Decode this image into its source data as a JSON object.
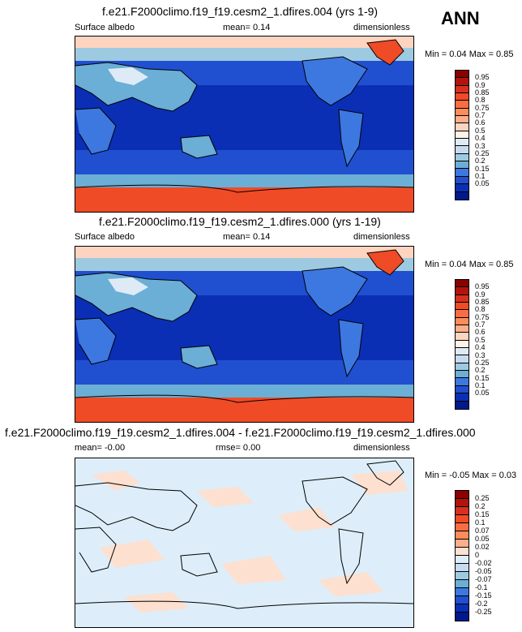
{
  "season": "ANN",
  "panels": [
    {
      "title": "f.e21.F2000climo.f19_f19.cesm2_1.dfires.004 (yrs 1-9)",
      "left_label": "Surface albedo",
      "center_label": "mean=  0.14",
      "right_label": "dimensionless",
      "minmax": "Min =  0.04 Max =  0.85",
      "colorbar": {
        "labels": [
          "0.95",
          "0.9",
          "0.85",
          "0.8",
          "0.75",
          "0.7",
          "0.6",
          "0.5",
          "0.4",
          "0.3",
          "0.25",
          "0.2",
          "0.15",
          "0.1",
          "0.05"
        ],
        "colors": [
          "#8b0000",
          "#b2140a",
          "#d7301f",
          "#ef4b26",
          "#f96d43",
          "#fc8d59",
          "#fdae8a",
          "#fdd4c0",
          "#fff3e8",
          "#deebf7",
          "#c6dbef",
          "#9ecae1",
          "#6baed6",
          "#3d78e0",
          "#2050d0",
          "#0a2fb5",
          "#001a8c"
        ]
      }
    },
    {
      "title": "f.e21.F2000climo.f19_f19.cesm2_1.dfires.000 (yrs 1-19)",
      "left_label": "Surface albedo",
      "center_label": "mean=  0.14",
      "right_label": "dimensionless",
      "minmax": "Min =  0.04 Max =  0.85",
      "colorbar": {
        "labels": [
          "0.95",
          "0.9",
          "0.85",
          "0.8",
          "0.75",
          "0.7",
          "0.6",
          "0.5",
          "0.4",
          "0.3",
          "0.25",
          "0.2",
          "0.15",
          "0.1",
          "0.05"
        ],
        "colors": [
          "#8b0000",
          "#b2140a",
          "#d7301f",
          "#ef4b26",
          "#f96d43",
          "#fc8d59",
          "#fdae8a",
          "#fdd4c0",
          "#fff3e8",
          "#deebf7",
          "#c6dbef",
          "#9ecae1",
          "#6baed6",
          "#3d78e0",
          "#2050d0",
          "#0a2fb5",
          "#001a8c"
        ]
      }
    },
    {
      "title": "f.e21.F2000climo.f19_f19.cesm2_1.dfires.004 - f.e21.F2000climo.f19_f19.cesm2_1.dfires.000",
      "left_label": "mean=  -0.00",
      "center_label": "rmse=  0.00",
      "right_label": "dimensionless",
      "minmax": "Min = -0.05 Max =  0.03",
      "colorbar": {
        "labels": [
          "0.25",
          "0.2",
          "0.15",
          "0.1",
          "0.07",
          "0.05",
          "0.02",
          "0",
          "-0.02",
          "-0.05",
          "-0.07",
          "-0.1",
          "-0.15",
          "-0.2",
          "-0.25"
        ],
        "colors": [
          "#8b0000",
          "#b2140a",
          "#d7301f",
          "#ef4b26",
          "#f96d43",
          "#fc8d59",
          "#fdae8a",
          "#fde0d0",
          "#ddeefa",
          "#c6dbef",
          "#9ecae1",
          "#6baed6",
          "#3d78e0",
          "#2050d0",
          "#0a2fb5",
          "#001a8c"
        ]
      }
    }
  ]
}
